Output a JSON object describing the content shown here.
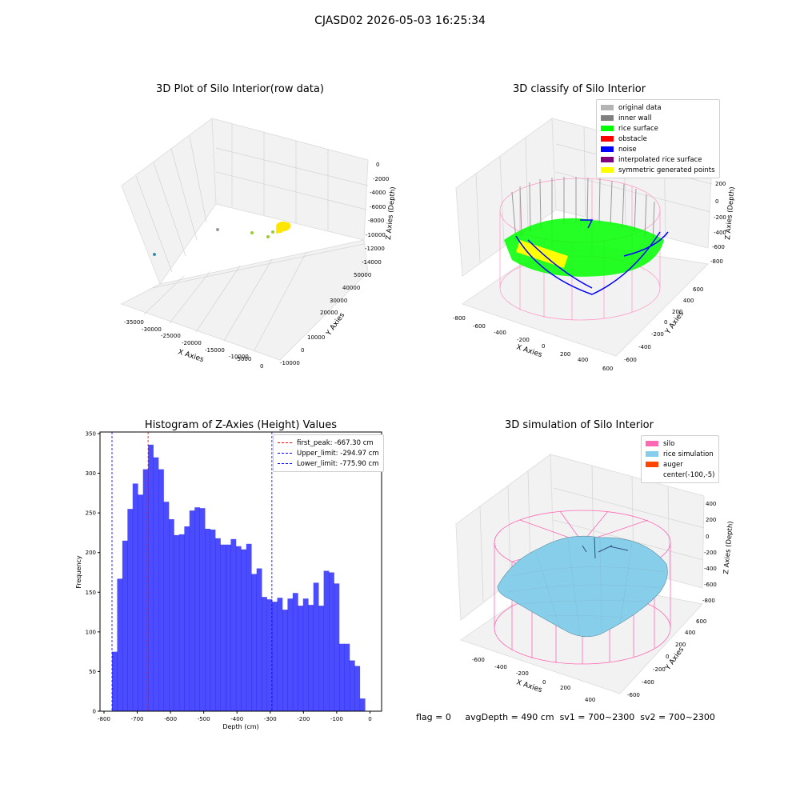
{
  "suptitle": "CJASD02 2026-05-03 16:25:34",
  "panel_raw": {
    "title": "3D Plot of Silo Interior(row data)",
    "x_label": "X Axies",
    "y_label": "Y Axies",
    "z_label": "Z Axies (Depth)",
    "x_ticks": [
      "-35000",
      "-30000",
      "-25000",
      "-20000",
      "-15000",
      "-10000",
      "-5000",
      "0"
    ],
    "y_ticks": [
      "-10000",
      "0",
      "10000",
      "20000",
      "30000",
      "40000",
      "50000"
    ],
    "z_ticks": [
      "0",
      "-2000",
      "-4000",
      "-6000",
      "-8000",
      "-10000",
      "-12000",
      "-14000"
    ]
  },
  "panel_classify": {
    "title": "3D classify of Silo Interior",
    "x_label": "X Axies",
    "y_label": "Y Axies",
    "z_label": "Z Axies (Depth)",
    "x_ticks": [
      "-800",
      "-600",
      "-400",
      "-200",
      "0",
      "200",
      "400",
      "600"
    ],
    "y_ticks": [
      "-600",
      "-400",
      "-200",
      "0",
      "200",
      "400",
      "600"
    ],
    "z_ticks": [
      "200",
      "0",
      "-200",
      "-400",
      "-600",
      "-800"
    ],
    "legend": [
      {
        "label": "original data",
        "color": "#b3b3b3"
      },
      {
        "label": "inner wall",
        "color": "#808080"
      },
      {
        "label": "rice surface",
        "color": "#00ff00"
      },
      {
        "label": "obstacle",
        "color": "#ff0000"
      },
      {
        "label": "noise",
        "color": "#0000ff"
      },
      {
        "label": "interpolated rice surface",
        "color": "#800080"
      },
      {
        "label": "symmetric generated points",
        "color": "#ffff00"
      }
    ]
  },
  "panel_sim": {
    "title": "3D simulation of Silo Interior",
    "x_label": "X Axies",
    "y_label": "Y Axies",
    "z_label": "Z Axies (Depth)",
    "x_ticks": [
      "-600",
      "-400",
      "-200",
      "0",
      "200",
      "400"
    ],
    "y_ticks": [
      "-600",
      "-400",
      "-200",
      "0",
      "200",
      "400",
      "600"
    ],
    "z_ticks": [
      "400",
      "200",
      "0",
      "-200",
      "-400",
      "-600",
      "-800"
    ],
    "legend": [
      {
        "label": "silo",
        "color": "#ff69b4"
      },
      {
        "label": "rice simulation",
        "color": "#87ceeb"
      },
      {
        "label": "auger",
        "color": "#ff4500"
      },
      {
        "label": "center(-100,-5)",
        "color": ""
      }
    ]
  },
  "footer": {
    "flag": "flag = 0",
    "avg_depth": "avgDepth = 490 cm",
    "sv1": "sv1 = 700~2300",
    "sv2": "sv2 = 700~2300"
  },
  "chart_data": {
    "type": "bar",
    "title": "Histogram of Z-Axies (Height) Values",
    "xlabel": "Depth (cm)",
    "ylabel": "Frequency",
    "xlim": [
      -812,
      35
    ],
    "ylim": [
      0,
      352
    ],
    "x_ticks": [
      -800,
      -700,
      -600,
      -500,
      -400,
      -300,
      -200,
      -100,
      0
    ],
    "y_ticks": [
      0,
      50,
      100,
      150,
      200,
      250,
      300,
      350
    ],
    "bin_start": -775.9,
    "bin_width": 15.53,
    "color": "#0000ff",
    "values": [
      75,
      167,
      215,
      255,
      287,
      273,
      305,
      336,
      320,
      305,
      264,
      242,
      222,
      223,
      233,
      253,
      257,
      256,
      230,
      229,
      218,
      210,
      210,
      217,
      208,
      204,
      211,
      173,
      180,
      144,
      141,
      138,
      143,
      128,
      142,
      149,
      133,
      142,
      134,
      162,
      133,
      177,
      175,
      161,
      85,
      85,
      64,
      57,
      16
    ],
    "vlines": [
      {
        "label": "first_peak: -667.30 cm",
        "x": -667.3,
        "color": "#ff0000"
      },
      {
        "label": "Upper_limit: -294.97 cm",
        "x": -294.97,
        "color": "#0000ff"
      },
      {
        "label": "Lower_limit: -775.90 cm",
        "x": -775.9,
        "color": "#0000ff"
      }
    ]
  }
}
